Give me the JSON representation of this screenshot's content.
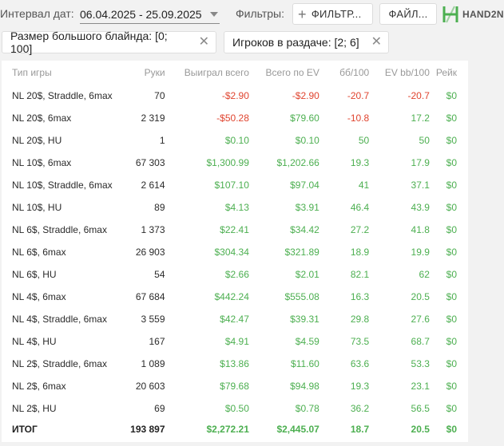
{
  "topbar": {
    "interval_label": "Интервал дат:",
    "date_range": "06.04.2025 - 25.09.2025",
    "filters_label": "Фильтры:",
    "filter_button": "ФИЛЬТР...",
    "file_button": "ФАЙЛ...",
    "logo_text": "HAND2N"
  },
  "chips": [
    {
      "label": "Размер большого блайнда: [0; 100]"
    },
    {
      "label": "Игроков в раздаче: [2; 6]"
    }
  ],
  "colors": {
    "positive": "#4caf50",
    "negative": "#e0442f"
  },
  "table": {
    "headers": [
      "Тип игры",
      "Руки",
      "Выиграл всего",
      "Всего по EV",
      "бб/100",
      "EV bb/100",
      "Рейк"
    ],
    "rows": [
      {
        "type": "NL 20$, Straddle, 6max",
        "hands": "70",
        "won": "-$2.90",
        "ev": "-$2.90",
        "bb": "-20.7",
        "evbb": "-20.7",
        "rake": "$0"
      },
      {
        "type": "NL 20$, 6max",
        "hands": "2 319",
        "won": "-$50.28",
        "ev": "$79.60",
        "bb": "-10.8",
        "evbb": "17.2",
        "rake": "$0"
      },
      {
        "type": "NL 20$, HU",
        "hands": "1",
        "won": "$0.10",
        "ev": "$0.10",
        "bb": "50",
        "evbb": "50",
        "rake": "$0"
      },
      {
        "type": "NL 10$, 6max",
        "hands": "67 303",
        "won": "$1,300.99",
        "ev": "$1,202.66",
        "bb": "19.3",
        "evbb": "17.9",
        "rake": "$0"
      },
      {
        "type": "NL 10$, Straddle, 6max",
        "hands": "2 614",
        "won": "$107.10",
        "ev": "$97.04",
        "bb": "41",
        "evbb": "37.1",
        "rake": "$0"
      },
      {
        "type": "NL 10$, HU",
        "hands": "89",
        "won": "$4.13",
        "ev": "$3.91",
        "bb": "46.4",
        "evbb": "43.9",
        "rake": "$0"
      },
      {
        "type": "NL 6$, Straddle, 6max",
        "hands": "1 373",
        "won": "$22.41",
        "ev": "$34.42",
        "bb": "27.2",
        "evbb": "41.8",
        "rake": "$0"
      },
      {
        "type": "NL 6$, 6max",
        "hands": "26 903",
        "won": "$304.34",
        "ev": "$321.89",
        "bb": "18.9",
        "evbb": "19.9",
        "rake": "$0"
      },
      {
        "type": "NL 6$, HU",
        "hands": "54",
        "won": "$2.66",
        "ev": "$2.01",
        "bb": "82.1",
        "evbb": "62",
        "rake": "$0"
      },
      {
        "type": "NL 4$, 6max",
        "hands": "67 684",
        "won": "$442.24",
        "ev": "$555.08",
        "bb": "16.3",
        "evbb": "20.5",
        "rake": "$0"
      },
      {
        "type": "NL 4$, Straddle, 6max",
        "hands": "3 559",
        "won": "$42.47",
        "ev": "$39.31",
        "bb": "29.8",
        "evbb": "27.6",
        "rake": "$0"
      },
      {
        "type": "NL 4$, HU",
        "hands": "167",
        "won": "$4.91",
        "ev": "$4.59",
        "bb": "73.5",
        "evbb": "68.7",
        "rake": "$0"
      },
      {
        "type": "NL 2$, Straddle, 6max",
        "hands": "1 089",
        "won": "$13.86",
        "ev": "$11.60",
        "bb": "63.6",
        "evbb": "53.3",
        "rake": "$0"
      },
      {
        "type": "NL 2$, 6max",
        "hands": "20 603",
        "won": "$79.68",
        "ev": "$94.98",
        "bb": "19.3",
        "evbb": "23.1",
        "rake": "$0"
      },
      {
        "type": "NL 2$, HU",
        "hands": "69",
        "won": "$0.50",
        "ev": "$0.78",
        "bb": "36.2",
        "evbb": "56.5",
        "rake": "$0"
      }
    ],
    "total": {
      "type": "ИТОГ",
      "hands": "193 897",
      "won": "$2,272.21",
      "ev": "$2,445.07",
      "bb": "18.7",
      "evbb": "20.5",
      "rake": "$0"
    }
  }
}
